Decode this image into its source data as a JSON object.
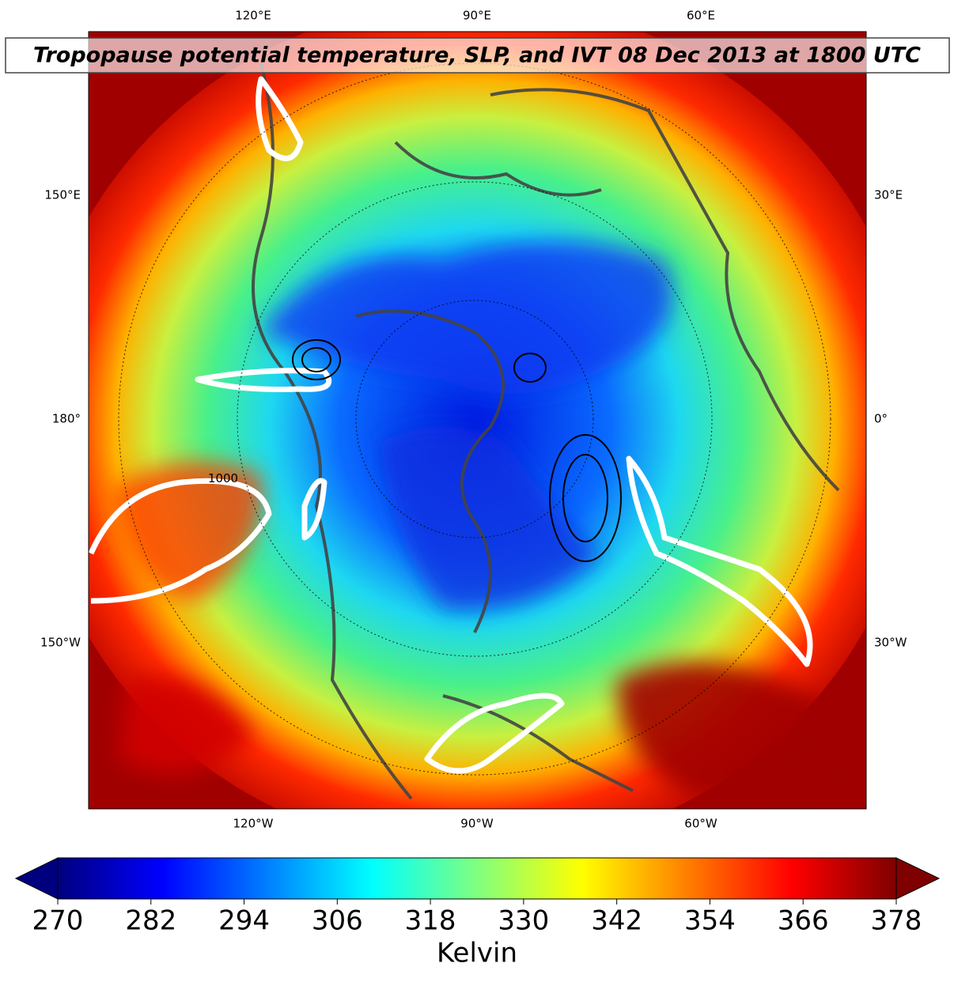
{
  "title": "Tropopause potential temperature, SLP, and IVT 08 Dec 2013 at 1800 UTC",
  "map": {
    "top_labels": [
      "120°E",
      "90°E",
      "60°E"
    ],
    "bottom_labels": [
      "120°W",
      "90°W",
      "60°W"
    ],
    "left_labels": [
      "150°E",
      "180°",
      "150°W"
    ],
    "right_labels": [
      "30°E",
      "0°",
      "30°W"
    ],
    "contour_label": "1000"
  },
  "colorbar": {
    "range": [
      270,
      378
    ],
    "ticks": [
      270,
      282,
      294,
      306,
      318,
      330,
      342,
      354,
      366,
      378
    ],
    "label": "Kelvin"
  }
}
